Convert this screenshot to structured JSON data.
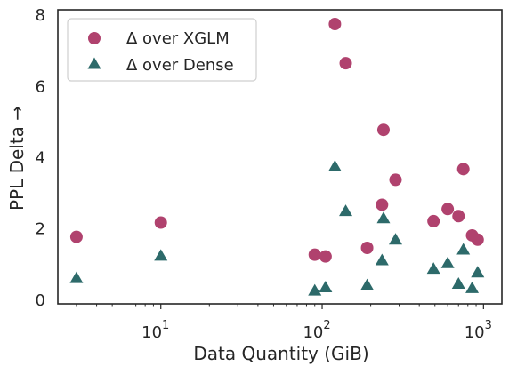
{
  "chart_data": {
    "type": "scatter",
    "x_scale": "log",
    "xlabel": "Data Quantity (GiB)",
    "ylabel": "PPL Delta →",
    "xlim": [
      2.3,
      1300
    ],
    "ylim": [
      -0.1,
      8.15
    ],
    "x_ticks": [
      {
        "value": 10,
        "base": "10",
        "exp": "1"
      },
      {
        "value": 100,
        "base": "10",
        "exp": "2"
      },
      {
        "value": 1000,
        "base": "10",
        "exp": "3"
      }
    ],
    "y_ticks": [
      0,
      2,
      4,
      6,
      8
    ],
    "grid": false,
    "legend_position": "top-left",
    "series": [
      {
        "name": "Δ over XGLM",
        "marker": "circle",
        "color": "#b0426e",
        "points": [
          {
            "x": 3,
            "y": 1.78
          },
          {
            "x": 10,
            "y": 2.18
          },
          {
            "x": 90,
            "y": 1.28
          },
          {
            "x": 105,
            "y": 1.23
          },
          {
            "x": 120,
            "y": 7.75
          },
          {
            "x": 140,
            "y": 6.65
          },
          {
            "x": 190,
            "y": 1.47
          },
          {
            "x": 235,
            "y": 2.68
          },
          {
            "x": 240,
            "y": 4.78
          },
          {
            "x": 285,
            "y": 3.38
          },
          {
            "x": 490,
            "y": 2.22
          },
          {
            "x": 600,
            "y": 2.56
          },
          {
            "x": 700,
            "y": 2.36
          },
          {
            "x": 750,
            "y": 3.68
          },
          {
            "x": 850,
            "y": 1.82
          },
          {
            "x": 920,
            "y": 1.7
          }
        ]
      },
      {
        "name": "Δ over Dense",
        "marker": "triangle",
        "color": "#2d6a6a",
        "points": [
          {
            "x": 3,
            "y": 0.62
          },
          {
            "x": 10,
            "y": 1.25
          },
          {
            "x": 90,
            "y": 0.27
          },
          {
            "x": 105,
            "y": 0.36
          },
          {
            "x": 120,
            "y": 3.75
          },
          {
            "x": 140,
            "y": 2.5
          },
          {
            "x": 190,
            "y": 0.42
          },
          {
            "x": 235,
            "y": 1.12
          },
          {
            "x": 240,
            "y": 2.3
          },
          {
            "x": 285,
            "y": 1.7
          },
          {
            "x": 490,
            "y": 0.88
          },
          {
            "x": 600,
            "y": 1.04
          },
          {
            "x": 700,
            "y": 0.46
          },
          {
            "x": 750,
            "y": 1.42
          },
          {
            "x": 850,
            "y": 0.34
          },
          {
            "x": 920,
            "y": 0.78
          }
        ]
      }
    ]
  }
}
